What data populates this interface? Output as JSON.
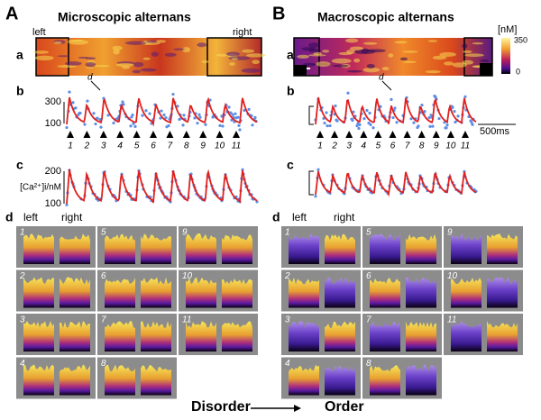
{
  "panelA": {
    "letter": "A",
    "title": "Microscopic alternans",
    "a": {
      "label": "a",
      "left": "left",
      "right": "right"
    },
    "b": {
      "label": "b",
      "yticks": [
        "300",
        "100"
      ],
      "annotation": "d",
      "beats": [
        "1",
        "2",
        "3",
        "4",
        "5",
        "6",
        "7",
        "8",
        "9",
        "10",
        "11"
      ]
    },
    "c": {
      "label": "c",
      "yticks": [
        "200",
        "100"
      ],
      "ylabel": "[Ca²⁺]i/nM"
    },
    "d": {
      "label": "d",
      "left": "left",
      "right": "right",
      "panels": [
        "1",
        "2",
        "3",
        "4",
        "5",
        "6",
        "7",
        "8",
        "9",
        "10",
        "11"
      ]
    }
  },
  "panelB": {
    "letter": "B",
    "title": "Macroscopic alternans",
    "a": {
      "label": "a",
      "colorbar_unit": "[nM]",
      "colorbar_max": "350",
      "colorbar_min": "0"
    },
    "b": {
      "label": "b",
      "annotation": "d",
      "beats": [
        "1",
        "2",
        "3",
        "4",
        "5",
        "6",
        "7",
        "8",
        "9",
        "10",
        "11"
      ],
      "scalebar": "500ms"
    },
    "c": {
      "label": "c"
    },
    "d": {
      "label": "d",
      "left": "left",
      "right": "right",
      "panels": [
        "1",
        "2",
        "3",
        "4",
        "5",
        "6",
        "7",
        "8",
        "9",
        "10",
        "11"
      ]
    }
  },
  "footer": {
    "from": "Disorder",
    "to": "Order"
  }
}
